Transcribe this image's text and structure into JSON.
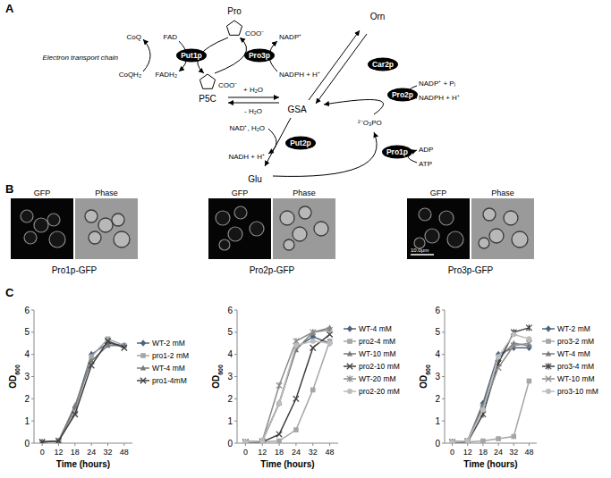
{
  "panel_labels": [
    "A",
    "B",
    "C"
  ],
  "diagram": {
    "metabolites": [
      "Pro",
      "P5C",
      "GSA",
      "Orn",
      "Glu"
    ],
    "structure_labels": [
      "COO⁻",
      "COO⁻",
      "²⁻O₃PO"
    ],
    "enzymes": [
      "Put1p",
      "Pro3p",
      "Car2p",
      "Pro2p",
      "Put2p",
      "Pro1p"
    ],
    "cofactors": [
      "FAD",
      "FADH₂",
      "CoQ",
      "CoQH₂",
      "Electron transport chain",
      "NADP⁺",
      "NADPH + H⁺",
      "+ H₂O",
      "- H₂O",
      "NADP⁺ + Pᵢ",
      "NADPH + H⁺",
      "NAD⁺, H₂O",
      "NADH + H⁺",
      "ADP",
      "ATP"
    ]
  },
  "micrographs": {
    "channels": [
      "GFP",
      "Phase"
    ],
    "panels": [
      {
        "caption": "Pro1p-GFP"
      },
      {
        "caption": "Pro2p-GFP"
      },
      {
        "caption": "Pro3p-GFP",
        "scale_bar": "10.0μm"
      }
    ]
  },
  "chart_data": [
    {
      "type": "line",
      "xlabel": "Time (hours)",
      "ylabel": "OD600",
      "categories": [
        "0",
        "12",
        "18",
        "24",
        "32",
        "48"
      ],
      "ylim": [
        0,
        6
      ],
      "yticks": [
        0,
        1,
        2,
        3,
        4,
        5,
        6
      ],
      "legend": "right",
      "series": [
        {
          "name": "WT-2 mM",
          "color": "#4d6480",
          "marker": "diamond",
          "values": [
            0.05,
            0.1,
            1.6,
            4.0,
            4.5,
            4.4
          ]
        },
        {
          "name": "pro1-2 mM",
          "color": "#a6a6a6",
          "marker": "square",
          "values": [
            0.05,
            0.1,
            1.4,
            3.9,
            4.7,
            4.4
          ]
        },
        {
          "name": "WT-4 mM",
          "color": "#7a7a7a",
          "marker": "triangle",
          "values": [
            0.05,
            0.1,
            1.7,
            3.7,
            4.4,
            4.4
          ]
        },
        {
          "name": "pro1-4mM",
          "color": "#404040",
          "marker": "x",
          "values": [
            0.05,
            0.1,
            1.3,
            3.5,
            4.6,
            4.3
          ]
        }
      ]
    },
    {
      "type": "line",
      "xlabel": "Time (hours)",
      "ylabel": "OD600",
      "categories": [
        "0",
        "12",
        "18",
        "24",
        "32",
        "48"
      ],
      "ylim": [
        0,
        6
      ],
      "yticks": [
        0,
        1,
        2,
        3,
        4,
        5,
        6
      ],
      "legend": "right",
      "series": [
        {
          "name": "WT-4 mM",
          "color": "#4d6480",
          "marker": "diamond",
          "values": [
            0.05,
            0.1,
            1.8,
            4.3,
            4.8,
            4.5
          ]
        },
        {
          "name": "pro2-4 mM",
          "color": "#a6a6a6",
          "marker": "square",
          "values": [
            0.05,
            0.05,
            0.1,
            0.6,
            2.4,
            4.6
          ]
        },
        {
          "name": "WT-10 mM",
          "color": "#7a7a7a",
          "marker": "triangle",
          "values": [
            0.05,
            0.1,
            1.8,
            4.2,
            5.0,
            5.2
          ]
        },
        {
          "name": "pro2-10 mM",
          "color": "#404040",
          "marker": "x",
          "values": [
            0.05,
            0.05,
            0.4,
            2.0,
            4.3,
            4.9
          ]
        },
        {
          "name": "WT-20 mM",
          "color": "#8c8c8c",
          "marker": "star",
          "values": [
            0.05,
            0.1,
            2.6,
            4.6,
            5.0,
            5.1
          ]
        },
        {
          "name": "pro2-20 mM",
          "color": "#bdbdbd",
          "marker": "circle",
          "values": [
            0.05,
            0.1,
            1.8,
            4.4,
            4.6,
            4.5
          ]
        }
      ]
    },
    {
      "type": "line",
      "xlabel": "Time (hours)",
      "ylabel": "OD600",
      "categories": [
        "0",
        "12",
        "18",
        "24",
        "32",
        "48"
      ],
      "ylim": [
        0,
        6
      ],
      "yticks": [
        0,
        1,
        2,
        3,
        4,
        5,
        6
      ],
      "legend": "right",
      "series": [
        {
          "name": "WT-2 mM",
          "color": "#4d6480",
          "marker": "diamond",
          "values": [
            0.05,
            0.1,
            1.8,
            4.0,
            4.3,
            4.3
          ]
        },
        {
          "name": "pro3-2 mM",
          "color": "#a6a6a6",
          "marker": "square",
          "values": [
            0.05,
            0.05,
            0.1,
            0.2,
            0.3,
            2.8
          ]
        },
        {
          "name": "WT-4 mM",
          "color": "#7a7a7a",
          "marker": "triangle",
          "values": [
            0.05,
            0.1,
            1.7,
            3.8,
            4.5,
            4.4
          ]
        },
        {
          "name": "pro3-4 mM",
          "color": "#404040",
          "marker": "star",
          "values": [
            0.05,
            0.05,
            1.3,
            3.6,
            5.0,
            5.2
          ]
        },
        {
          "name": "WT-10 mM",
          "color": "#8c8c8c",
          "marker": "x",
          "values": [
            0.05,
            0.1,
            1.6,
            3.4,
            4.4,
            4.5
          ]
        },
        {
          "name": "pro3-10 mM",
          "color": "#bdbdbd",
          "marker": "circle",
          "values": [
            0.05,
            0.1,
            1.5,
            3.9,
            4.9,
            4.7
          ]
        }
      ]
    }
  ]
}
